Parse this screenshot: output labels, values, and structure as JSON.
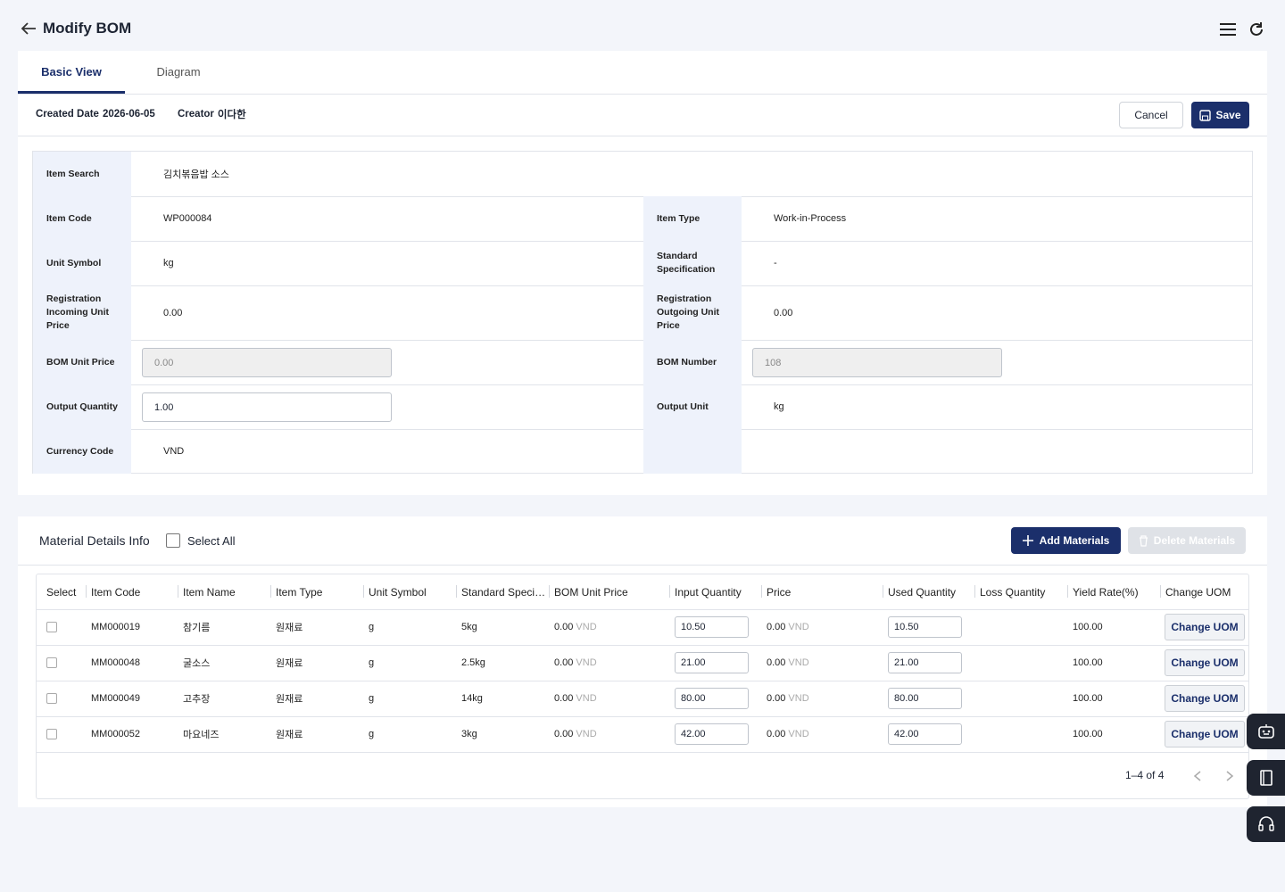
{
  "header": {
    "title": "Modify BOM"
  },
  "tabs": [
    "Basic View",
    "Diagram"
  ],
  "meta": {
    "created_label": "Created Date",
    "created": "2026-06-05",
    "creator_label": "Creator",
    "creator": "이다한"
  },
  "actions": {
    "cancel": "Cancel",
    "save": "Save"
  },
  "form": {
    "search": {
      "label": "Item Search",
      "value": "김치볶음밥 소스"
    },
    "rows": [
      [
        {
          "label": "Item Code",
          "value": "WP000084"
        },
        {
          "label": "Item Type",
          "value": "Work-in-Process"
        }
      ],
      [
        {
          "label": "Unit Symbol",
          "value": "kg"
        },
        {
          "label": "Standard Specification",
          "value": "-"
        }
      ],
      [
        {
          "label": "Registration Incoming Unit Price",
          "value": "0.00"
        },
        {
          "label": "Registration Outgoing Unit Price",
          "value": "0.00"
        }
      ],
      [
        {
          "label": "BOM Unit Price",
          "value": "0.00",
          "field": "disabled"
        },
        {
          "label": "BOM Number",
          "value": "108",
          "field": "disabled"
        }
      ],
      [
        {
          "label": "Output Quantity",
          "value": "1.00",
          "field": "input"
        },
        {
          "label": "Output Unit",
          "value": "kg"
        }
      ],
      [
        {
          "label": "Currency Code",
          "value": "VND"
        }
      ]
    ]
  },
  "materials": {
    "title": "Material Details Info",
    "select_all": "Select All",
    "add": "Add Materials",
    "delete": "Delete Materials",
    "columns": [
      "Select",
      "Item Code",
      "Item Name",
      "Item Type",
      "Unit Symbol",
      "Standard Specification",
      "BOM Unit Price",
      "Input Quantity",
      "Price",
      "Used Quantity",
      "Loss Quantity",
      "Yield Rate(%)",
      "Change UOM"
    ],
    "currency": "VND",
    "button": "Change UOM",
    "rows": [
      {
        "code": "MM000019",
        "name": "참기름",
        "type": "원재료",
        "unit": "g",
        "spec": "5kg",
        "bom_price": "0.00",
        "input_qty": "10.50",
        "price": "0.00",
        "used_qty": "10.50",
        "yield": "100.00"
      },
      {
        "code": "MM000048",
        "name": "굴소스",
        "type": "원재료",
        "unit": "g",
        "spec": "2.5kg",
        "bom_price": "0.00",
        "input_qty": "21.00",
        "price": "0.00",
        "used_qty": "21.00",
        "yield": "100.00"
      },
      {
        "code": "MM000049",
        "name": "고추장",
        "type": "원재료",
        "unit": "g",
        "spec": "14kg",
        "bom_price": "0.00",
        "input_qty": "80.00",
        "price": "0.00",
        "used_qty": "80.00",
        "yield": "100.00"
      },
      {
        "code": "MM000052",
        "name": "마요네즈",
        "type": "원재료",
        "unit": "g",
        "spec": "3kg",
        "bom_price": "0.00",
        "input_qty": "42.00",
        "price": "0.00",
        "used_qty": "42.00",
        "yield": "100.00"
      }
    ],
    "pagination": "1–4 of 4"
  }
}
